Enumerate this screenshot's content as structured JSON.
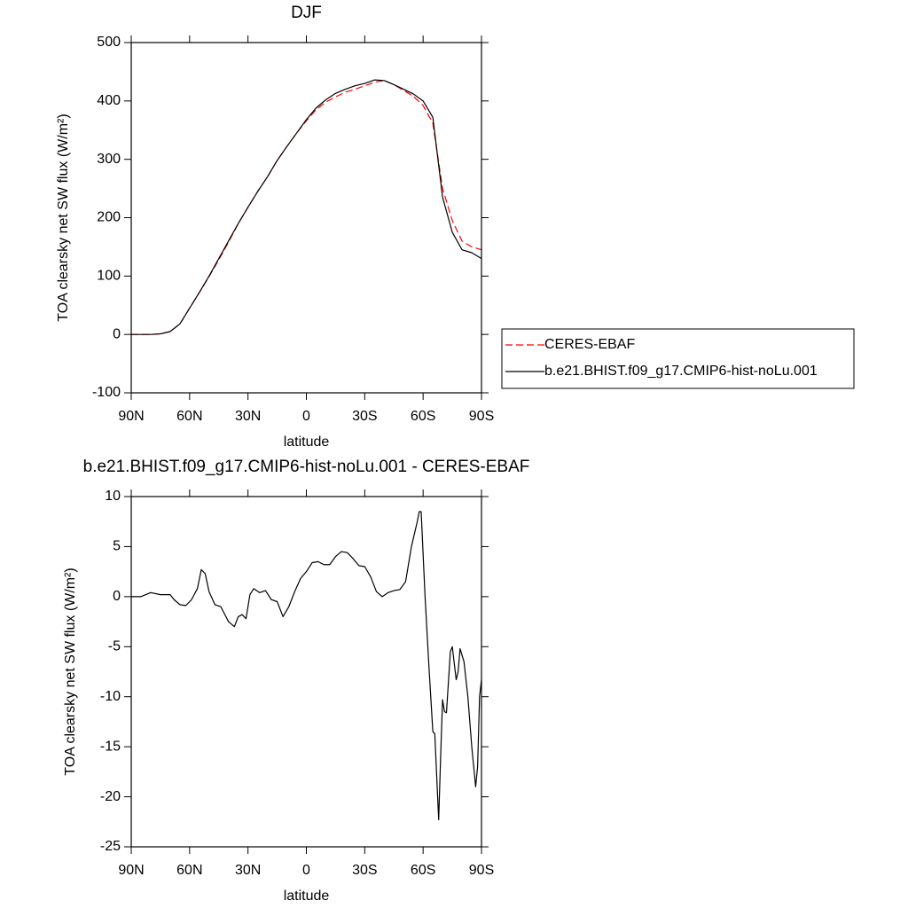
{
  "chart_data": [
    {
      "type": "line",
      "title": "DJF",
      "x_label": "latitude",
      "y_label": "TOA clearsky net SW flux (W/m²)",
      "x": [
        90,
        85,
        80,
        75,
        70,
        65,
        60,
        55,
        50,
        45,
        40,
        35,
        30,
        25,
        20,
        15,
        10,
        5,
        0,
        -5,
        -10,
        -15,
        -20,
        -25,
        -30,
        -35,
        -40,
        -45,
        -50,
        -55,
        -60,
        -65,
        -70,
        -75,
        -80,
        -85,
        -90
      ],
      "series": [
        {
          "name": "CERES-EBAF",
          "color": "#ff0000",
          "line_style": "dashed",
          "values": [
            0,
            0,
            0,
            1,
            5,
            18,
            45,
            72,
            99,
            128,
            158,
            190,
            218,
            245,
            270,
            298,
            322,
            345,
            366,
            385,
            398,
            407,
            415,
            420,
            426,
            432,
            435,
            428,
            418,
            408,
            392,
            362,
            250,
            195,
            160,
            150,
            145
          ]
        },
        {
          "name": "b.e21.BHIST.f09_g17.CMIP6-hist-noLu.001",
          "color": "#000000",
          "line_style": "solid",
          "values": [
            0,
            0,
            0,
            1,
            5,
            18,
            45,
            72,
            100,
            130,
            160,
            190,
            218,
            245,
            270,
            298,
            322,
            345,
            368,
            388,
            402,
            413,
            420,
            426,
            430,
            436,
            435,
            428,
            420,
            412,
            400,
            372,
            235,
            175,
            145,
            140,
            130
          ]
        }
      ],
      "xlim": [
        90,
        -90
      ],
      "xticks": [
        {
          "value": 90,
          "label": "90N"
        },
        {
          "value": 60,
          "label": "60N"
        },
        {
          "value": 30,
          "label": "30N"
        },
        0,
        {
          "value": -30,
          "label": "30S"
        },
        {
          "value": -60,
          "label": "60S"
        },
        {
          "value": -90,
          "label": "90S"
        }
      ],
      "ylim": [
        -100,
        500
      ],
      "yticks": [
        -100,
        0,
        100,
        200,
        300,
        400,
        500
      ],
      "legend": "right"
    },
    {
      "type": "line",
      "title": "b.e21.BHIST.f09_g17.CMIP6-hist-noLu.001 - CERES-EBAF",
      "x_label": "latitude",
      "y_label": "TOA clearsky net SW flux (W/m²)",
      "x": [
        90,
        85,
        80,
        75,
        70,
        68,
        65,
        62,
        59,
        56,
        54,
        52,
        50,
        47,
        44,
        40,
        37,
        35,
        33,
        31,
        29,
        27,
        24,
        21,
        18,
        15,
        12,
        9,
        6,
        3,
        0,
        -3,
        -6,
        -9,
        -12,
        -15,
        -18,
        -21,
        -24,
        -27,
        -30,
        -33,
        -36,
        -39,
        -42,
        -45,
        -48,
        -51,
        -54,
        -57,
        -58,
        -59,
        -61,
        -63,
        -65,
        -66,
        -68,
        -69,
        -70,
        -71,
        -72,
        -74,
        -75,
        -77,
        -78,
        -79,
        -81,
        -83,
        -85,
        -87,
        -88,
        -89,
        -90
      ],
      "series": [
        {
          "color": "#000000",
          "line_style": "solid",
          "values": [
            0,
            0,
            0.4,
            0.2,
            0.2,
            -0.3,
            -0.8,
            -0.9,
            -0.3,
            0.8,
            2.7,
            2.3,
            0.5,
            -0.8,
            -1.0,
            -2.5,
            -3.0,
            -2.0,
            -1.8,
            -2.2,
            0.2,
            0.8,
            0.4,
            0.6,
            -0.3,
            -0.5,
            -2.0,
            -1.0,
            0.5,
            1.8,
            2.5,
            3.4,
            3.5,
            3.2,
            3.2,
            4.0,
            4.5,
            4.4,
            3.8,
            3.1,
            3.0,
            2.0,
            0.5,
            0,
            0.4,
            0.6,
            0.7,
            1.5,
            5.0,
            7.5,
            8.5,
            8.5,
            0,
            -7,
            -13.5,
            -13.7,
            -22.3,
            -16,
            -10.3,
            -11.5,
            -11.6,
            -5.5,
            -5.0,
            -8.3,
            -7.5,
            -5.2,
            -6.5,
            -10,
            -15,
            -19,
            -17,
            -10,
            -8.3
          ]
        }
      ],
      "xlim": [
        90,
        -90
      ],
      "xticks": [
        {
          "value": 90,
          "label": "90N"
        },
        {
          "value": 60,
          "label": "60N"
        },
        {
          "value": 30,
          "label": "30N"
        },
        0,
        {
          "value": -30,
          "label": "30S"
        },
        {
          "value": -60,
          "label": "60S"
        },
        {
          "value": -90,
          "label": "90S"
        }
      ],
      "ylim": [
        -25,
        10
      ],
      "yticks": [
        -25,
        -20,
        -15,
        -10,
        -5,
        0,
        5,
        10
      ]
    }
  ]
}
